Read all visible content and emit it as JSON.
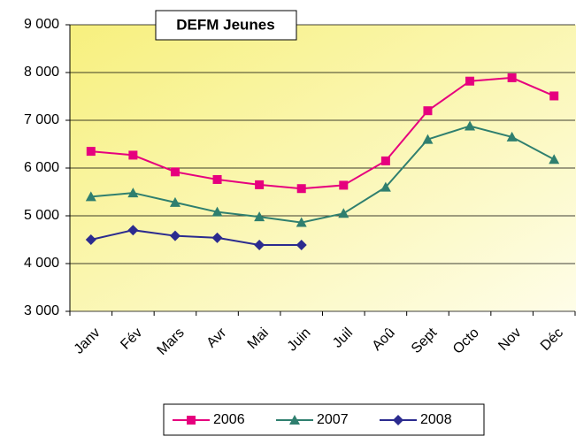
{
  "chart_data": {
    "type": "line",
    "title": "DEFM Jeunes",
    "categories": [
      "Janv",
      "Fév",
      "Mars",
      "Avr",
      "Mai",
      "Juin",
      "Juil",
      "Aoû",
      "Sept",
      "Octo",
      "Nov",
      "Déc"
    ],
    "series": [
      {
        "name": "2006",
        "color": "#e6007e",
        "marker": "square",
        "values": [
          6350,
          6270,
          5920,
          5760,
          5650,
          5570,
          5640,
          6150,
          7200,
          7820,
          7890,
          7510
        ]
      },
      {
        "name": "2007",
        "color": "#2f7f6f",
        "marker": "triangle",
        "values": [
          5400,
          5480,
          5280,
          5080,
          4980,
          4860,
          5050,
          5600,
          6600,
          6880,
          6650,
          6180
        ]
      },
      {
        "name": "2008",
        "color": "#2b2b8f",
        "marker": "diamond",
        "values": [
          4500,
          4700,
          4580,
          4540,
          4390,
          4390,
          null,
          null,
          null,
          null,
          null,
          null
        ]
      }
    ],
    "ylim": [
      3000,
      9000
    ],
    "yticks": [
      {
        "value": 3000,
        "label": "3 000"
      },
      {
        "value": 4000,
        "label": "4 000"
      },
      {
        "value": 5000,
        "label": "5 000"
      },
      {
        "value": 6000,
        "label": "6 000"
      },
      {
        "value": 7000,
        "label": "7 000"
      },
      {
        "value": 8000,
        "label": "8 000"
      },
      {
        "value": 9000,
        "label": "9 000"
      }
    ],
    "grid": true,
    "legend": "bottom"
  }
}
